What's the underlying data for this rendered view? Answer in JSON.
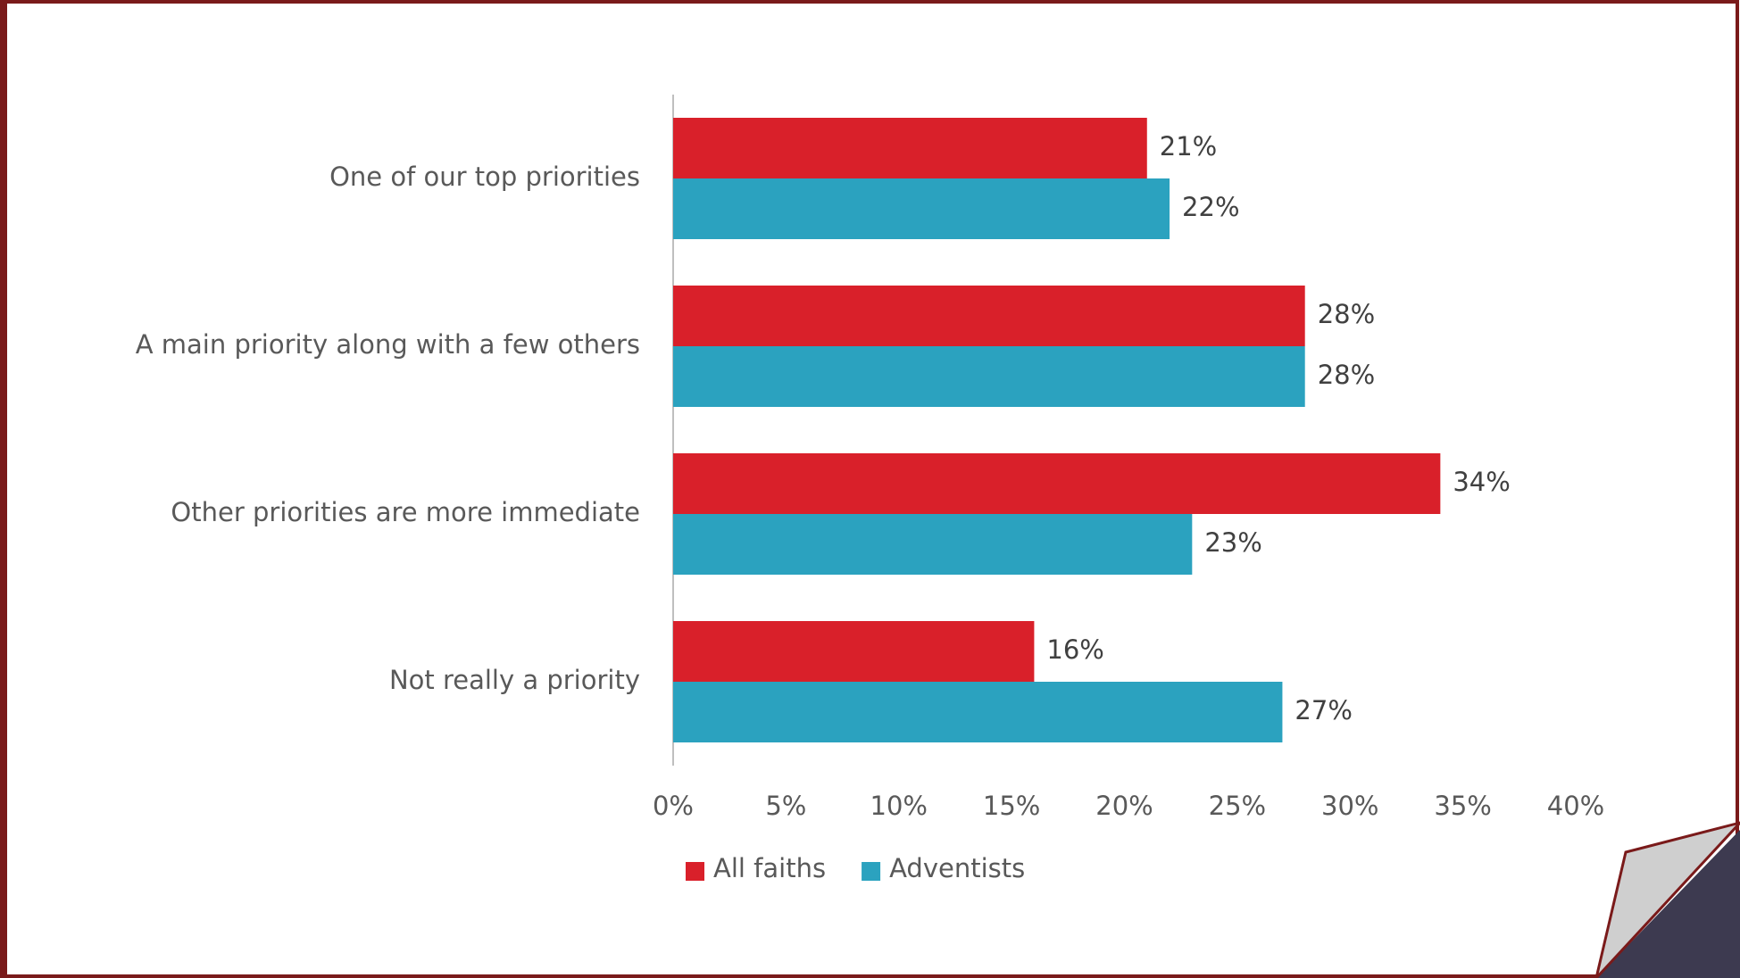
{
  "chart_data": {
    "type": "bar",
    "orientation": "horizontal",
    "categories": [
      "One of our top priorities",
      "A main priority along with a few others",
      "Other priorities are more immediate",
      "Not really a priority"
    ],
    "series": [
      {
        "name": "All faiths",
        "color": "#d9202a",
        "values": [
          21,
          28,
          34,
          16
        ],
        "value_labels": [
          "21%",
          "28%",
          "34%",
          "16%"
        ]
      },
      {
        "name": "Adventists",
        "color": "#2ba2bf",
        "values": [
          22,
          28,
          23,
          27
        ],
        "value_labels": [
          "22%",
          "28%",
          "23%",
          "27%"
        ]
      }
    ],
    "xlim": [
      0,
      40
    ],
    "xticks": [
      {
        "value": 0,
        "label": "0%"
      },
      {
        "value": 5,
        "label": "5%"
      },
      {
        "value": 10,
        "label": "10%"
      },
      {
        "value": 15,
        "label": "15%"
      },
      {
        "value": 20,
        "label": "20%"
      },
      {
        "value": 25,
        "label": "25%"
      },
      {
        "value": 30,
        "label": "30%"
      },
      {
        "value": 35,
        "label": "35%"
      },
      {
        "value": 40,
        "label": "40%"
      }
    ],
    "grid": false,
    "legend": "bottom"
  }
}
